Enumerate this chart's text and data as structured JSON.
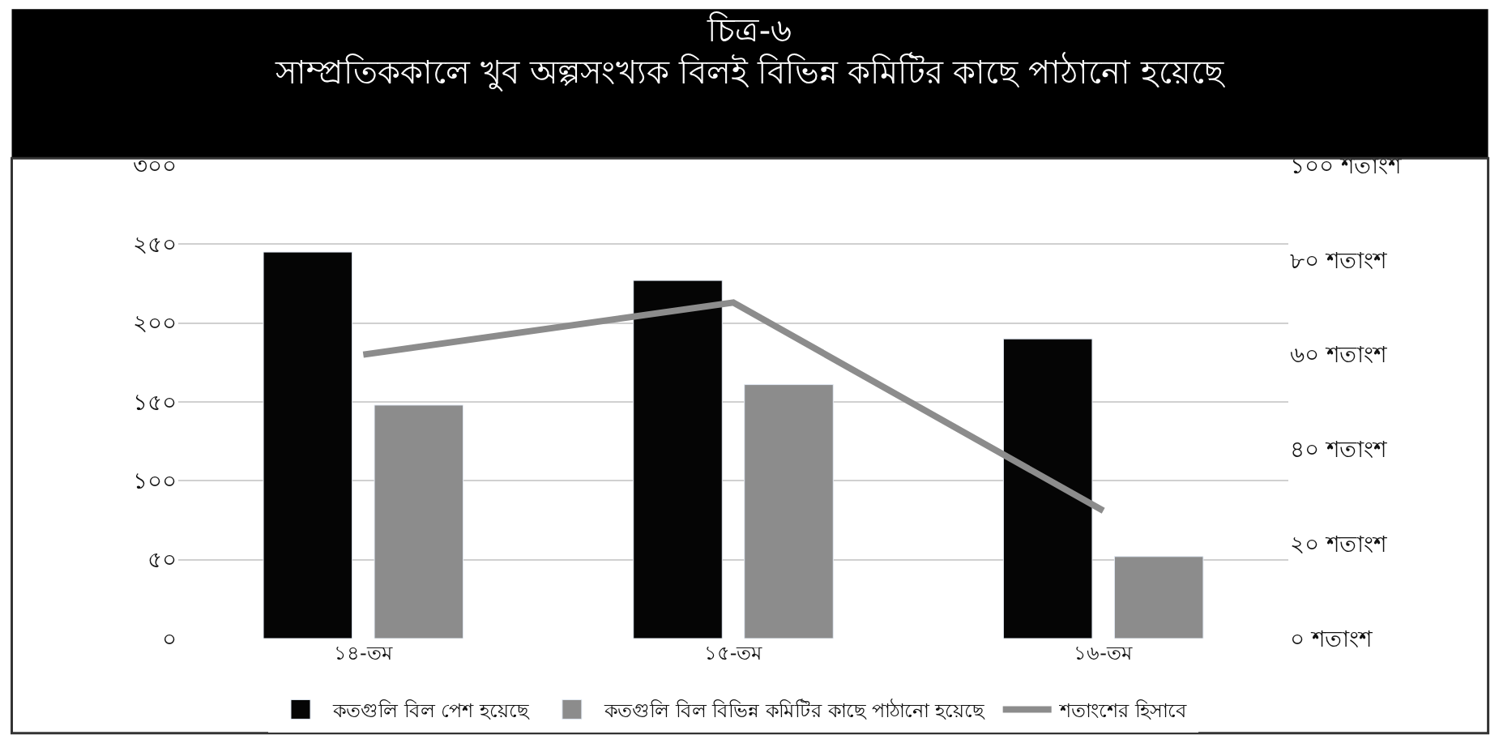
{
  "chart_data": {
    "type": "bar",
    "title": "চিত্র-৬",
    "subtitle": "সাম্প্রতিককালে খুব অল্পসংখ্যক বিলই বিভিন্ন কমিটির কাছে পাঠানো হয়েছে",
    "categories": [
      "১৪-তম",
      "১৫-তম",
      "১৬-তম"
    ],
    "series": [
      {
        "name": "কতগুলি বিল পেশ হয়েছে",
        "color": "#050505",
        "values": [
          245,
          227,
          190
        ]
      },
      {
        "name": "কতগুলি বিল বিভিন্ন কমিটির কাছে পাঠানো হয়েছে",
        "color": "#8c8c8c",
        "values": [
          148,
          161,
          52
        ]
      },
      {
        "name": "শতাংশের হিসাবে",
        "type": "line",
        "axis": "y2",
        "color": "#8c8c8c",
        "values": [
          60,
          71,
          27
        ]
      }
    ],
    "ylim": [
      0,
      300
    ],
    "yticks": [
      {
        "value": 0,
        "label": "০"
      },
      {
        "value": 50,
        "label": "৫০"
      },
      {
        "value": 100,
        "label": "১০০"
      },
      {
        "value": 150,
        "label": "১৫০"
      },
      {
        "value": 200,
        "label": "২০০"
      },
      {
        "value": 250,
        "label": "২৫০"
      },
      {
        "value": 300,
        "label": "৩০০"
      }
    ],
    "y2lim": [
      0,
      100
    ],
    "y2ticks": [
      {
        "value": 0,
        "label": "০ শতাংশ"
      },
      {
        "value": 20,
        "label": "২০ শতাংশ"
      },
      {
        "value": 40,
        "label": "৪০ শতাংশ"
      },
      {
        "value": 60,
        "label": "৬০ শতাংশ"
      },
      {
        "value": 80,
        "label": "৮০ শতাংশ"
      },
      {
        "value": 100,
        "label": "১০০ শতাংশ"
      }
    ],
    "grid": "y",
    "legend": "bottom",
    "marker": "none"
  }
}
